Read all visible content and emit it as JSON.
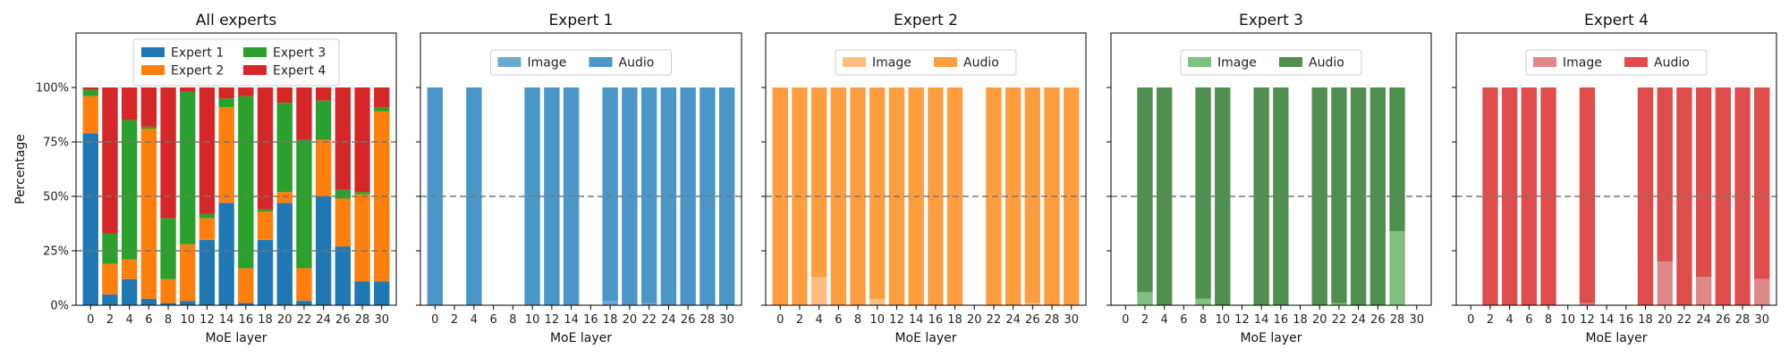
{
  "chart_data": [
    {
      "type": "bar",
      "stacked": true,
      "title": "All experts",
      "xlabel": "MoE layer",
      "ylabel": "Percentage",
      "x": [
        0,
        2,
        4,
        6,
        8,
        10,
        12,
        14,
        16,
        18,
        20,
        22,
        24,
        26,
        28,
        30
      ],
      "xticks": [
        0,
        2,
        4,
        6,
        8,
        10,
        12,
        14,
        16,
        18,
        20,
        22,
        24,
        26,
        28,
        30
      ],
      "ylim": [
        0,
        125
      ],
      "yticks": [
        "0%",
        "25%",
        "50%",
        "75%",
        "100%"
      ],
      "hlines": [
        25,
        50,
        75
      ],
      "legend": "upper-center-2col",
      "series": [
        {
          "name": "Expert 1",
          "color": "#1f77b4",
          "values": [
            79,
            5,
            12,
            3,
            1,
            2,
            30,
            47,
            1,
            30,
            47,
            2,
            50,
            27,
            11,
            11
          ]
        },
        {
          "name": "Expert 2",
          "color": "#ff7f0e",
          "values": [
            17,
            14,
            9,
            78,
            11,
            26,
            10,
            44,
            16,
            13,
            5,
            15,
            26,
            22,
            40,
            78
          ]
        },
        {
          "name": "Expert 3",
          "color": "#2ca02c",
          "values": [
            3,
            14,
            64,
            1,
            28,
            70,
            2,
            4,
            79,
            1,
            41,
            59,
            18,
            4,
            1,
            2
          ]
        },
        {
          "name": "Expert 4",
          "color": "#d62728",
          "values": [
            1,
            67,
            15,
            18,
            60,
            2,
            58,
            5,
            4,
            56,
            7,
            24,
            6,
            47,
            48,
            9
          ]
        }
      ]
    },
    {
      "type": "bar",
      "stacked": true,
      "title": "Expert 1",
      "xlabel": "MoE layer",
      "x": [
        0,
        2,
        4,
        6,
        8,
        10,
        12,
        14,
        16,
        18,
        20,
        22,
        24,
        26,
        28,
        30
      ],
      "xticks": [
        0,
        2,
        4,
        6,
        8,
        10,
        12,
        14,
        16,
        18,
        20,
        22,
        24,
        26,
        28,
        30
      ],
      "ylim": [
        0,
        125
      ],
      "hlines": [
        50
      ],
      "legend": "upper-center-1row",
      "series": [
        {
          "name": "Image",
          "color": "#6ea9d3",
          "values": [
            0,
            0,
            0,
            0,
            0,
            0,
            0,
            0,
            0,
            2,
            0,
            1,
            0,
            0,
            0,
            0
          ]
        },
        {
          "name": "Audio",
          "color": "#4a96c9",
          "values": [
            100,
            0,
            100,
            0,
            0,
            100,
            100,
            100,
            0,
            98,
            100,
            99,
            100,
            100,
            100,
            100
          ]
        }
      ]
    },
    {
      "type": "bar",
      "stacked": true,
      "title": "Expert 2",
      "xlabel": "MoE layer",
      "x": [
        0,
        2,
        4,
        6,
        8,
        10,
        12,
        14,
        16,
        18,
        20,
        22,
        24,
        26,
        28,
        30
      ],
      "xticks": [
        0,
        2,
        4,
        6,
        8,
        10,
        12,
        14,
        16,
        18,
        20,
        22,
        24,
        26,
        28,
        30
      ],
      "ylim": [
        0,
        125
      ],
      "hlines": [
        50
      ],
      "legend": "upper-center-1row",
      "series": [
        {
          "name": "Image",
          "color": "#ffbe80",
          "values": [
            0,
            0,
            13,
            0,
            0,
            3,
            0,
            0,
            0,
            0,
            0,
            0,
            0,
            1,
            0,
            0
          ]
        },
        {
          "name": "Audio",
          "color": "#ff9d3f",
          "values": [
            100,
            100,
            87,
            100,
            100,
            97,
            100,
            100,
            100,
            100,
            0,
            100,
            100,
            99,
            100,
            100
          ]
        }
      ]
    },
    {
      "type": "bar",
      "stacked": true,
      "title": "Expert 3",
      "xlabel": "MoE layer",
      "x": [
        0,
        2,
        4,
        6,
        8,
        10,
        12,
        14,
        16,
        18,
        20,
        22,
        24,
        26,
        28,
        30
      ],
      "xticks": [
        0,
        2,
        4,
        6,
        8,
        10,
        12,
        14,
        16,
        18,
        20,
        22,
        24,
        26,
        28,
        30
      ],
      "ylim": [
        0,
        125
      ],
      "hlines": [
        50
      ],
      "legend": "upper-center-1row",
      "series": [
        {
          "name": "Image",
          "color": "#7fbf7f",
          "values": [
            0,
            6,
            0,
            0,
            3,
            0,
            0,
            0,
            0,
            0,
            0,
            1,
            0,
            0,
            34,
            0
          ]
        },
        {
          "name": "Audio",
          "color": "#4f8f4f",
          "values": [
            0,
            94,
            100,
            0,
            97,
            100,
            0,
            100,
            100,
            0,
            100,
            99,
            100,
            100,
            66,
            0
          ]
        }
      ]
    },
    {
      "type": "bar",
      "stacked": true,
      "title": "Expert 4",
      "xlabel": "MoE layer",
      "x": [
        0,
        2,
        4,
        6,
        8,
        10,
        12,
        14,
        16,
        18,
        20,
        22,
        24,
        26,
        28,
        30
      ],
      "xticks": [
        0,
        2,
        4,
        6,
        8,
        10,
        12,
        14,
        16,
        18,
        20,
        22,
        24,
        26,
        28,
        30
      ],
      "ylim": [
        0,
        125
      ],
      "hlines": [
        50
      ],
      "legend": "upper-center-1row",
      "series": [
        {
          "name": "Image",
          "color": "#e08888",
          "values": [
            0,
            0,
            0,
            0,
            0,
            0,
            1,
            0,
            0,
            0,
            20,
            0,
            13,
            0,
            0,
            12
          ]
        },
        {
          "name": "Audio",
          "color": "#df4c4c",
          "values": [
            0,
            100,
            100,
            100,
            100,
            0,
            99,
            0,
            0,
            100,
            80,
            100,
            87,
            100,
            100,
            88
          ]
        }
      ]
    }
  ]
}
